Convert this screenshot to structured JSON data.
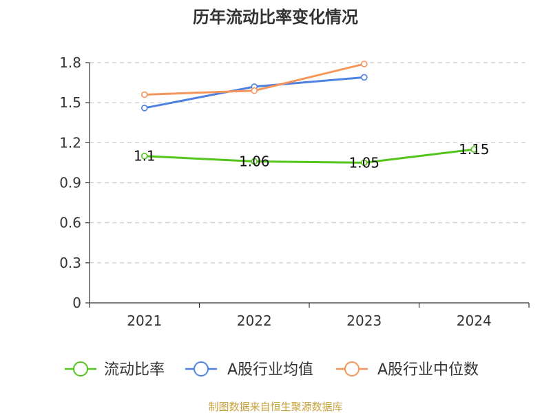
{
  "chart_data": {
    "type": "line",
    "title": "历年流动比率变化情况",
    "categories": [
      "2021",
      "2022",
      "2023",
      "2024"
    ],
    "ylim": [
      0,
      1.8
    ],
    "yticks": [
      0,
      0.3,
      0.6,
      0.9,
      1.2,
      1.5,
      1.8
    ],
    "ytick_labels": [
      "0",
      "0.3",
      "0.6",
      "0.9",
      "1.2",
      "1.5",
      "1.8"
    ],
    "grid": true,
    "legend_position": "bottom",
    "series": [
      {
        "name": "流动比率",
        "color": "#52c41a",
        "values": [
          1.1,
          1.06,
          1.05,
          1.15
        ],
        "labels": [
          "1.1",
          "1.06",
          "1.05",
          "1.15"
        ]
      },
      {
        "name": "A股行业均值",
        "color": "#4f81e0",
        "values": [
          1.46,
          1.62,
          1.69,
          null
        ]
      },
      {
        "name": "A股行业中位数",
        "color": "#f5955a",
        "values": [
          1.56,
          1.59,
          1.79,
          null
        ]
      }
    ],
    "source": "制图数据来自恒生聚源数据库"
  }
}
